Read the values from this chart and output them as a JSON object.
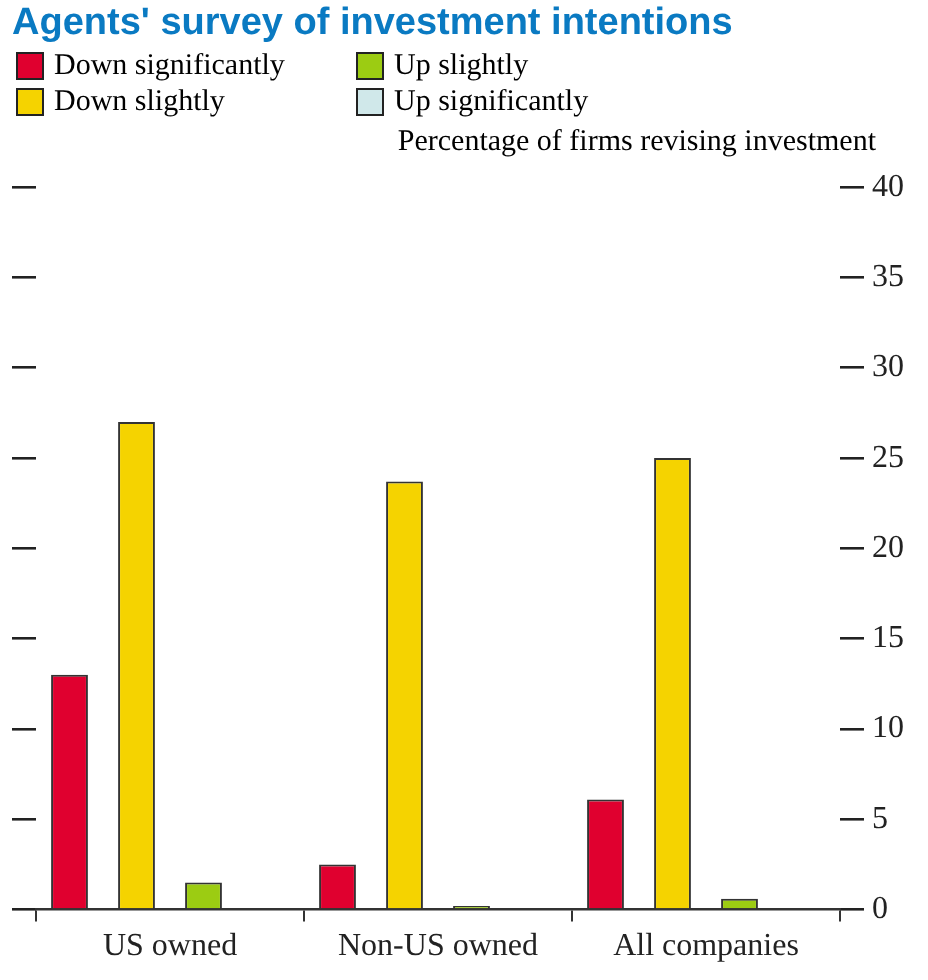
{
  "chart_data": {
    "type": "bar",
    "title": "Agents' survey of investment intentions",
    "ylabel": "Percentage of firms revising investment",
    "categories": [
      "US owned",
      "Non-US owned",
      "All companies"
    ],
    "series": [
      {
        "name": "Down significantly",
        "color": "#e0002f",
        "values": [
          13,
          2.5,
          6.1
        ]
      },
      {
        "name": "Down slightly",
        "color": "#f5d300",
        "values": [
          27,
          23.7,
          25
        ]
      },
      {
        "name": "Up slightly",
        "color": "#9ccc12",
        "values": [
          1.5,
          0.2,
          0.6
        ]
      },
      {
        "name": "Up significantly",
        "color": "#d0e8ea",
        "values": [
          0,
          0,
          0
        ]
      }
    ],
    "ylim": [
      0,
      40
    ],
    "yticks": [
      0,
      5,
      10,
      15,
      20,
      25,
      30,
      35,
      40
    ],
    "grid": false,
    "legend": "top left"
  }
}
